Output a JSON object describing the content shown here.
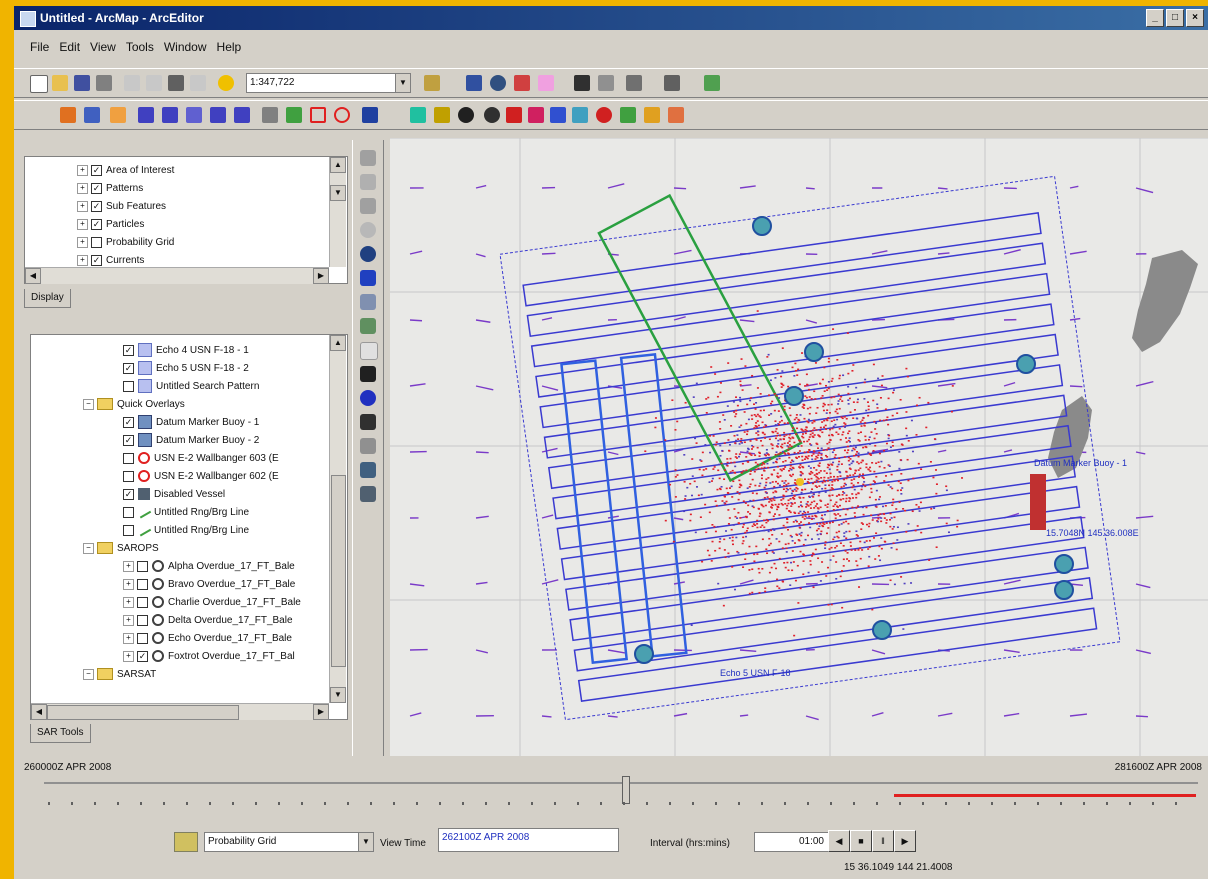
{
  "window": {
    "title": "Untitled - ArcMap - ArcEditor",
    "controls": [
      "_",
      "□",
      "×"
    ]
  },
  "menu": [
    "File",
    "Edit",
    "View",
    "Tools",
    "Window",
    "Help"
  ],
  "toolbar": {
    "scale": "1:347,722"
  },
  "toc_top": {
    "items": [
      {
        "label": "Area of Interest",
        "checked": true
      },
      {
        "label": "Patterns",
        "checked": true
      },
      {
        "label": "Sub Features",
        "checked": true
      },
      {
        "label": "Particles",
        "checked": true
      },
      {
        "label": "Probability Grid",
        "checked": false
      },
      {
        "label": "Currents",
        "checked": true
      }
    ],
    "tab": "Display"
  },
  "toc_bottom": {
    "items": [
      {
        "label": "Echo 4 USN F-18 - 1",
        "indent": 1,
        "kind": "pattern",
        "checked": true
      },
      {
        "label": "Echo 5 USN F-18 - 2",
        "indent": 1,
        "kind": "pattern",
        "checked": true
      },
      {
        "label": "Untitled Search Pattern",
        "indent": 1,
        "kind": "pattern",
        "checked": false
      },
      {
        "label": "Quick Overlays",
        "indent": 0,
        "kind": "folder"
      },
      {
        "label": "Datum Marker Buoy - 1",
        "indent": 1,
        "kind": "buoy",
        "checked": true
      },
      {
        "label": "Datum Marker Buoy - 2",
        "indent": 1,
        "kind": "buoy",
        "checked": true
      },
      {
        "label": "USN E-2 Wallbanger 603 (E",
        "indent": 1,
        "kind": "ring",
        "checked": false
      },
      {
        "label": "USN E-2 Wallbanger 602 (E",
        "indent": 1,
        "kind": "ring",
        "checked": false
      },
      {
        "label": "Disabled Vessel",
        "indent": 1,
        "kind": "vessel",
        "checked": true
      },
      {
        "label": "Untitled Rng/Brg Line",
        "indent": 1,
        "kind": "line",
        "checked": false
      },
      {
        "label": "Untitled Rng/Brg Line",
        "indent": 1,
        "kind": "line",
        "checked": false
      },
      {
        "label": "SAROPS",
        "indent": 0,
        "kind": "folder"
      },
      {
        "label": "Alpha Overdue_17_FT_Bale",
        "indent": 1,
        "kind": "sim",
        "checked": false
      },
      {
        "label": "Bravo Overdue_17_FT_Bale",
        "indent": 1,
        "kind": "sim",
        "checked": false
      },
      {
        "label": "Charlie Overdue_17_FT_Bale",
        "indent": 1,
        "kind": "sim",
        "checked": false
      },
      {
        "label": "Delta Overdue_17_FT_Bale",
        "indent": 1,
        "kind": "sim",
        "checked": false
      },
      {
        "label": "Echo Overdue_17_FT_Bale",
        "indent": 1,
        "kind": "sim",
        "checked": false
      },
      {
        "label": "Foxtrot Overdue_17_FT_Bal",
        "indent": 1,
        "kind": "sim",
        "checked": true
      },
      {
        "label": "SARSAT",
        "indent": 0,
        "kind": "folder"
      }
    ],
    "tab": "SAR Tools"
  },
  "map": {
    "labels": {
      "buoy": "Datum Marker Buoy - 1",
      "coord": "15.7048N 145.36.008E",
      "pattern": "Echo 5 USN F-18"
    }
  },
  "timebar": {
    "start": "260000Z APR 2008",
    "end": "281600Z APR 2008",
    "layer": "Probability Grid",
    "view_time_label": "View Time",
    "view_time": "262100Z APR 2008",
    "interval_label": "Interval (hrs:mins)",
    "interval": "01:00",
    "status": "15 36.1049 144 21.4008"
  },
  "colors": {
    "particles": "#e0202a",
    "patterns": "#3a3ad0",
    "green_pattern": "#2aa040",
    "land": "#8a8a8a",
    "time_range": "#e02020"
  }
}
